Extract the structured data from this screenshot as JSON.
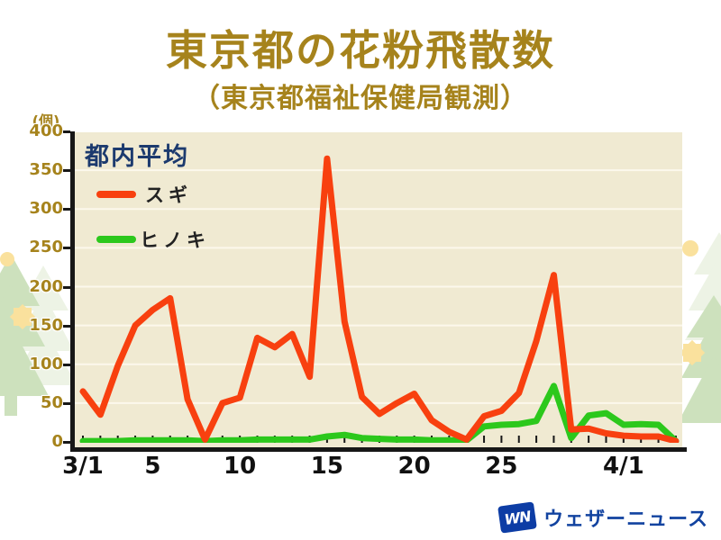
{
  "header": {
    "title": "東京都の花粉飛散数",
    "subtitle": "（東京都福祉保健局観測）"
  },
  "axes": {
    "y_unit": "(個)"
  },
  "legend": {
    "title": "都内平均",
    "items": [
      {
        "label": "スギ",
        "color": "#f8400f"
      },
      {
        "label": "ヒノキ",
        "color": "#2cc81c"
      }
    ]
  },
  "footer_logo": {
    "mark": "WN",
    "name": "ウェザーニュース",
    "color": "#1243a0"
  },
  "colors": {
    "title_gold": "#a6831c",
    "legend_title_navy": "#1c3a6e",
    "plot_background": "#f0ead2",
    "gridline": "#fcf8ec",
    "axis_black": "#171717",
    "sugi_red": "#f8400f",
    "hinoki_green": "#2cc81c"
  },
  "chart_data": {
    "type": "line",
    "title": "東京都の花粉飛散数（東京都福祉保健局観測）",
    "subtitle_note": "都内平均",
    "ylabel": "(個)",
    "ylim": [
      0,
      400
    ],
    "y_ticks": [
      0,
      50,
      100,
      150,
      200,
      250,
      300,
      350,
      400
    ],
    "grid": "horizontal",
    "legend_position": "upper-left-inside",
    "x": [
      "3/1",
      "3/2",
      "3/3",
      "3/4",
      "3/5",
      "3/6",
      "3/7",
      "3/8",
      "3/9",
      "3/10",
      "3/11",
      "3/12",
      "3/13",
      "3/14",
      "3/15",
      "3/16",
      "3/17",
      "3/18",
      "3/19",
      "3/20",
      "3/21",
      "3/22",
      "3/23",
      "3/24",
      "3/25",
      "3/26",
      "3/27",
      "3/28",
      "3/29",
      "3/30",
      "3/31",
      "4/1",
      "4/2",
      "4/3",
      "4/4"
    ],
    "x_tick_labels": [
      {
        "label": "3/1",
        "day_index": 0
      },
      {
        "label": "5",
        "day_index": 4
      },
      {
        "label": "10",
        "day_index": 9
      },
      {
        "label": "15",
        "day_index": 14
      },
      {
        "label": "20",
        "day_index": 19
      },
      {
        "label": "25",
        "day_index": 24
      },
      {
        "label": "4/1",
        "day_index": 31
      }
    ],
    "series": [
      {
        "name": "スギ",
        "color": "#f8400f",
        "values": [
          65,
          35,
          98,
          150,
          170,
          185,
          55,
          3,
          50,
          57,
          134,
          122,
          139,
          84,
          365,
          155,
          58,
          36,
          50,
          62,
          28,
          13,
          3,
          33,
          40,
          63,
          130,
          215,
          16,
          17,
          11,
          8,
          7,
          7,
          1
        ]
      },
      {
        "name": "ヒノキ",
        "color": "#2cc81c",
        "values": [
          1,
          1,
          1,
          2,
          2,
          2,
          2,
          1,
          2,
          2,
          3,
          3,
          3,
          3,
          7,
          9,
          5,
          4,
          3,
          3,
          2,
          2,
          2,
          20,
          22,
          23,
          27,
          72,
          5,
          34,
          37,
          22,
          23,
          22,
          1
        ]
      }
    ]
  }
}
